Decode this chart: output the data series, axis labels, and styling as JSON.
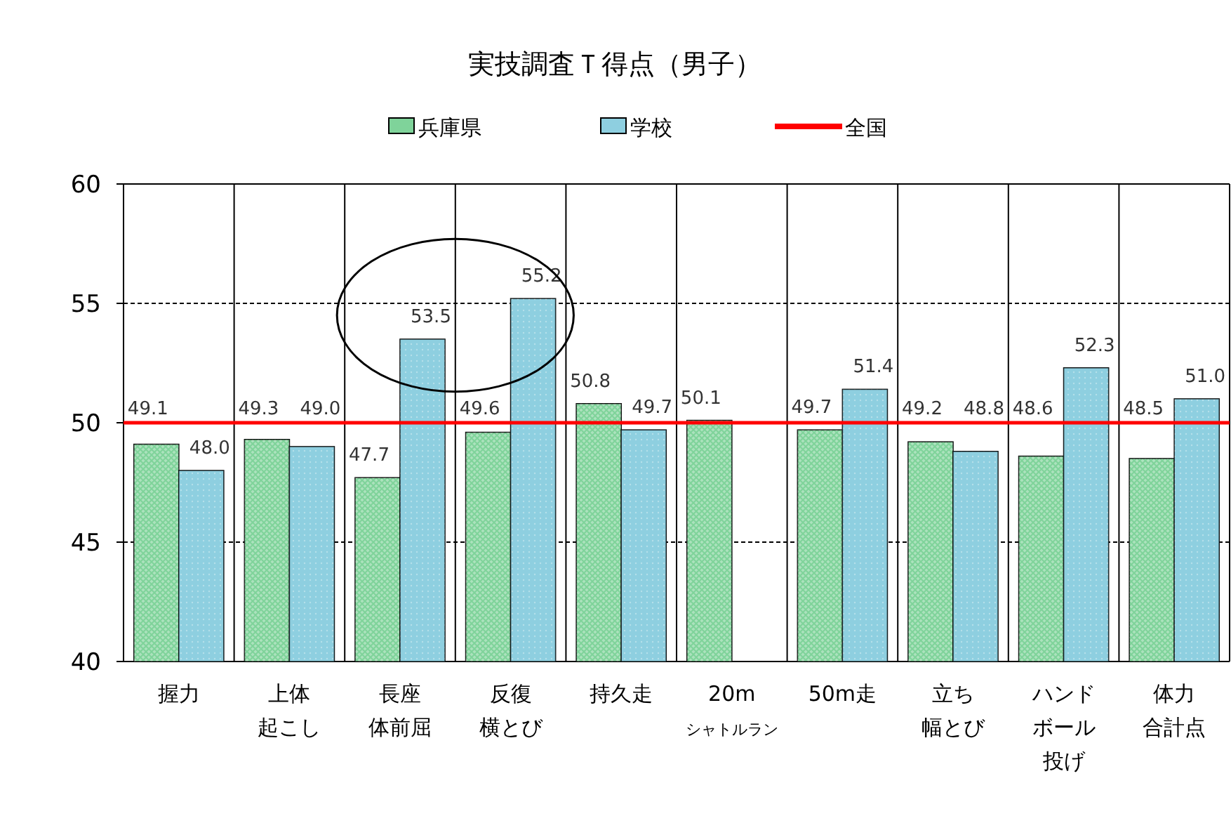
{
  "chart_data": {
    "type": "bar",
    "title": "実技調査Ｔ得点（男子）",
    "categories": [
      "握力",
      "上体起こし",
      "長座体前屈",
      "反復横とび",
      "持久走",
      "20m$_{シャトルラン}$",
      "50m走",
      "立ち幅とび",
      "ハンドボール投げ",
      "体力合計点"
    ],
    "series": [
      {
        "name": "兵庫県",
        "color": "#7fd39a",
        "values": [
          49.1,
          49.3,
          47.7,
          49.6,
          50.8,
          50.1,
          49.7,
          49.2,
          48.6,
          48.5
        ],
        "value_labels": [
          "49.1",
          "49.3",
          "47.7",
          "49.6",
          "50.8",
          "50.1",
          "49.7",
          "49.2",
          "48.6",
          "48.5"
        ]
      },
      {
        "name": "学校",
        "color": "#8ecfe0",
        "values": [
          48.0,
          49.0,
          53.5,
          55.2,
          49.7,
          null,
          51.4,
          48.8,
          52.3,
          51.0
        ],
        "value_labels": [
          "48.0",
          "49.0",
          "53.5",
          "55.2",
          "49.7",
          null,
          "51.4",
          "48.8",
          "52.3",
          "51.0"
        ]
      }
    ],
    "ref_lines": [
      {
        "axis": "y",
        "value": 50,
        "label": "全国",
        "color": "#ff0000"
      }
    ],
    "ylim": [
      40,
      60
    ],
    "yticks": [
      40,
      45,
      50,
      55,
      60
    ],
    "grid": true,
    "legend": "top"
  }
}
